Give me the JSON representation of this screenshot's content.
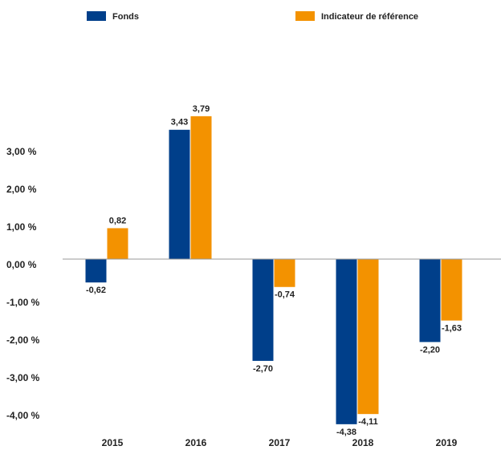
{
  "chart_data": {
    "type": "bar",
    "categories": [
      "2015",
      "2016",
      "2017",
      "2018",
      "2019"
    ],
    "series": [
      {
        "name": "Fonds",
        "color": "#003f8a",
        "values": [
          -0.62,
          3.43,
          -2.7,
          -4.38,
          -2.2
        ],
        "value_labels": [
          "-0,62",
          "3,43",
          "-2,70",
          "-4,38",
          "-2,20"
        ]
      },
      {
        "name": "Indicateur de référence",
        "color": "#f39200",
        "values": [
          0.82,
          3.79,
          -0.74,
          -4.11,
          -1.63
        ],
        "value_labels": [
          "0,82",
          "3,79",
          "-0,74",
          "-4,11",
          "-1,63"
        ]
      }
    ],
    "ylim": [
      -4.5,
      4
    ],
    "yticks": [
      {
        "value": 3,
        "label": "3,00 %"
      },
      {
        "value": 2,
        "label": "2,00 %"
      },
      {
        "value": 1,
        "label": "1,00 %"
      },
      {
        "value": 0,
        "label": "0,00 %"
      },
      {
        "value": -1,
        "label": "-1,00 %"
      },
      {
        "value": -2,
        "label": "-2,00 %"
      },
      {
        "value": -3,
        "label": "-3,00 %"
      },
      {
        "value": -4,
        "label": "-4,00 %"
      }
    ],
    "legend": "top",
    "grid": false
  }
}
